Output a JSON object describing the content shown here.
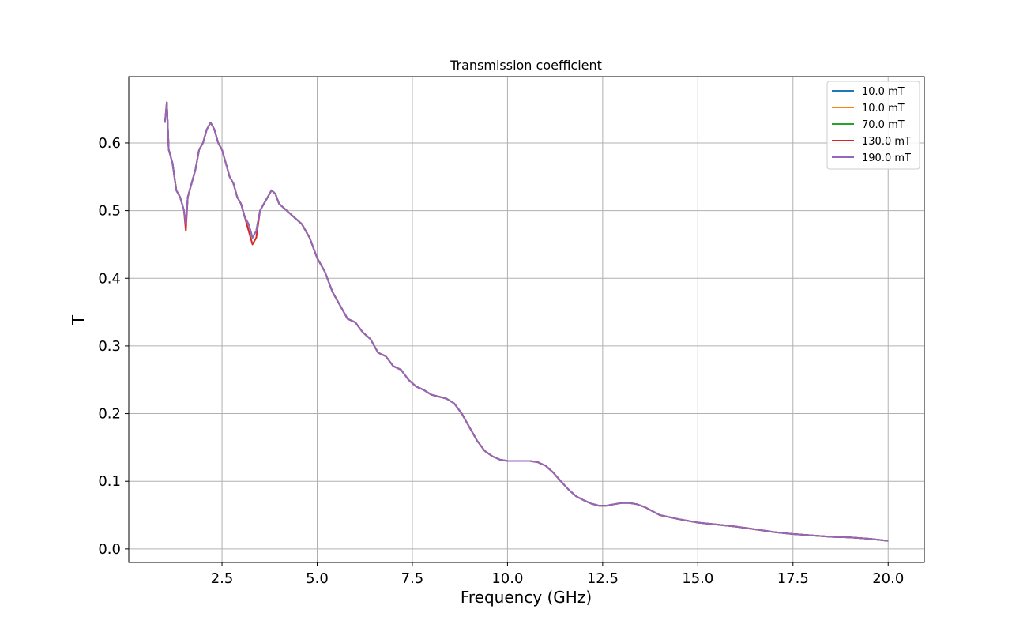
{
  "chart_data": {
    "type": "line",
    "title": "Transmission coefficient",
    "xlabel": "Frequency (GHz)",
    "ylabel": "T",
    "xlim": [
      0.05,
      20.95
    ],
    "ylim": [
      -0.02,
      0.698
    ],
    "xticks": [
      2.5,
      5.0,
      7.5,
      10.0,
      12.5,
      15.0,
      17.5,
      20.0
    ],
    "xtick_labels": [
      "2.5",
      "5.0",
      "7.5",
      "10.0",
      "12.5",
      "15.0",
      "17.5",
      "20.0"
    ],
    "yticks": [
      0.0,
      0.1,
      0.2,
      0.3,
      0.4,
      0.5,
      0.6
    ],
    "ytick_labels": [
      "0.0",
      "0.1",
      "0.2",
      "0.3",
      "0.4",
      "0.5",
      "0.6"
    ],
    "grid": true,
    "legend_position": "top-right",
    "x": [
      1.0,
      1.05,
      1.1,
      1.2,
      1.3,
      1.4,
      1.5,
      1.55,
      1.6,
      1.7,
      1.8,
      1.9,
      2.0,
      2.1,
      2.2,
      2.3,
      2.4,
      2.5,
      2.6,
      2.7,
      2.8,
      2.9,
      3.0,
      3.1,
      3.2,
      3.3,
      3.4,
      3.5,
      3.6,
      3.7,
      3.8,
      3.9,
      4.0,
      4.2,
      4.4,
      4.6,
      4.8,
      5.0,
      5.2,
      5.4,
      5.6,
      5.8,
      6.0,
      6.2,
      6.4,
      6.6,
      6.8,
      7.0,
      7.2,
      7.4,
      7.6,
      7.8,
      8.0,
      8.2,
      8.4,
      8.6,
      8.8,
      9.0,
      9.2,
      9.4,
      9.6,
      9.8,
      10.0,
      10.2,
      10.4,
      10.6,
      10.8,
      11.0,
      11.2,
      11.4,
      11.6,
      11.8,
      12.0,
      12.2,
      12.4,
      12.6,
      12.8,
      13.0,
      13.2,
      13.4,
      13.6,
      13.8,
      14.0,
      14.5,
      15.0,
      15.5,
      16.0,
      16.5,
      17.0,
      17.5,
      18.0,
      18.5,
      19.0,
      19.5,
      20.0
    ],
    "series": [
      {
        "name": "10.0 mT",
        "color": "#1f77b4",
        "values": [
          0.63,
          0.66,
          0.59,
          0.57,
          0.53,
          0.52,
          0.5,
          0.48,
          0.52,
          0.54,
          0.56,
          0.59,
          0.6,
          0.62,
          0.63,
          0.62,
          0.6,
          0.59,
          0.57,
          0.55,
          0.54,
          0.52,
          0.51,
          0.49,
          0.48,
          0.46,
          0.47,
          0.5,
          0.51,
          0.52,
          0.53,
          0.525,
          0.51,
          0.5,
          0.49,
          0.48,
          0.46,
          0.43,
          0.41,
          0.38,
          0.36,
          0.34,
          0.335,
          0.32,
          0.31,
          0.29,
          0.285,
          0.27,
          0.265,
          0.25,
          0.24,
          0.235,
          0.228,
          0.225,
          0.222,
          0.215,
          0.2,
          0.18,
          0.16,
          0.145,
          0.137,
          0.132,
          0.13,
          0.13,
          0.13,
          0.13,
          0.128,
          0.123,
          0.113,
          0.1,
          0.088,
          0.078,
          0.072,
          0.067,
          0.064,
          0.064,
          0.066,
          0.068,
          0.068,
          0.066,
          0.062,
          0.056,
          0.05,
          0.044,
          0.039,
          0.036,
          0.033,
          0.029,
          0.025,
          0.022,
          0.02,
          0.018,
          0.017,
          0.015,
          0.012
        ]
      },
      {
        "name": "10.0 mT",
        "color": "#ff7f0e",
        "values": [
          0.63,
          0.66,
          0.59,
          0.57,
          0.53,
          0.52,
          0.5,
          0.48,
          0.52,
          0.54,
          0.56,
          0.59,
          0.6,
          0.62,
          0.63,
          0.62,
          0.6,
          0.59,
          0.57,
          0.55,
          0.54,
          0.52,
          0.51,
          0.49,
          0.48,
          0.46,
          0.47,
          0.5,
          0.51,
          0.52,
          0.53,
          0.525,
          0.51,
          0.5,
          0.49,
          0.48,
          0.46,
          0.43,
          0.41,
          0.38,
          0.36,
          0.34,
          0.335,
          0.32,
          0.31,
          0.29,
          0.285,
          0.27,
          0.265,
          0.25,
          0.24,
          0.235,
          0.228,
          0.225,
          0.222,
          0.215,
          0.2,
          0.18,
          0.16,
          0.145,
          0.137,
          0.132,
          0.13,
          0.13,
          0.13,
          0.13,
          0.128,
          0.123,
          0.113,
          0.1,
          0.088,
          0.078,
          0.072,
          0.067,
          0.064,
          0.064,
          0.066,
          0.068,
          0.068,
          0.066,
          0.062,
          0.056,
          0.05,
          0.044,
          0.039,
          0.036,
          0.033,
          0.029,
          0.025,
          0.022,
          0.02,
          0.018,
          0.017,
          0.015,
          0.012
        ]
      },
      {
        "name": "70.0 mT",
        "color": "#2ca02c",
        "values": [
          0.63,
          0.66,
          0.59,
          0.57,
          0.53,
          0.52,
          0.5,
          0.48,
          0.52,
          0.54,
          0.56,
          0.59,
          0.6,
          0.62,
          0.63,
          0.62,
          0.6,
          0.59,
          0.57,
          0.55,
          0.54,
          0.52,
          0.51,
          0.49,
          0.48,
          0.46,
          0.47,
          0.5,
          0.51,
          0.52,
          0.53,
          0.525,
          0.51,
          0.5,
          0.49,
          0.48,
          0.46,
          0.43,
          0.41,
          0.38,
          0.36,
          0.34,
          0.335,
          0.32,
          0.31,
          0.29,
          0.285,
          0.27,
          0.265,
          0.25,
          0.24,
          0.235,
          0.228,
          0.225,
          0.222,
          0.215,
          0.2,
          0.18,
          0.16,
          0.145,
          0.137,
          0.132,
          0.13,
          0.13,
          0.13,
          0.13,
          0.128,
          0.123,
          0.113,
          0.1,
          0.088,
          0.078,
          0.072,
          0.067,
          0.064,
          0.064,
          0.066,
          0.068,
          0.068,
          0.066,
          0.062,
          0.056,
          0.05,
          0.044,
          0.039,
          0.036,
          0.033,
          0.029,
          0.025,
          0.022,
          0.02,
          0.018,
          0.017,
          0.015,
          0.012
        ]
      },
      {
        "name": "130.0 mT",
        "color": "#d62728",
        "values": [
          0.63,
          0.66,
          0.59,
          0.57,
          0.53,
          0.52,
          0.5,
          0.47,
          0.52,
          0.54,
          0.56,
          0.59,
          0.6,
          0.62,
          0.63,
          0.62,
          0.6,
          0.59,
          0.57,
          0.55,
          0.54,
          0.52,
          0.51,
          0.49,
          0.47,
          0.45,
          0.46,
          0.5,
          0.51,
          0.52,
          0.53,
          0.525,
          0.51,
          0.5,
          0.49,
          0.48,
          0.46,
          0.43,
          0.41,
          0.38,
          0.36,
          0.34,
          0.335,
          0.32,
          0.31,
          0.29,
          0.285,
          0.27,
          0.265,
          0.25,
          0.24,
          0.235,
          0.228,
          0.225,
          0.222,
          0.215,
          0.2,
          0.18,
          0.16,
          0.145,
          0.137,
          0.132,
          0.13,
          0.13,
          0.13,
          0.13,
          0.128,
          0.123,
          0.113,
          0.1,
          0.088,
          0.078,
          0.072,
          0.067,
          0.064,
          0.064,
          0.066,
          0.068,
          0.068,
          0.066,
          0.062,
          0.056,
          0.05,
          0.044,
          0.039,
          0.036,
          0.033,
          0.029,
          0.025,
          0.022,
          0.02,
          0.018,
          0.017,
          0.015,
          0.012
        ]
      },
      {
        "name": "190.0 mT",
        "color": "#9467bd",
        "values": [
          0.63,
          0.66,
          0.59,
          0.57,
          0.53,
          0.52,
          0.5,
          0.48,
          0.52,
          0.54,
          0.56,
          0.59,
          0.6,
          0.62,
          0.63,
          0.62,
          0.6,
          0.59,
          0.57,
          0.55,
          0.54,
          0.52,
          0.51,
          0.49,
          0.48,
          0.46,
          0.47,
          0.5,
          0.51,
          0.52,
          0.53,
          0.525,
          0.51,
          0.5,
          0.49,
          0.48,
          0.46,
          0.43,
          0.41,
          0.38,
          0.36,
          0.34,
          0.335,
          0.32,
          0.31,
          0.29,
          0.285,
          0.27,
          0.265,
          0.25,
          0.24,
          0.235,
          0.228,
          0.225,
          0.222,
          0.215,
          0.2,
          0.18,
          0.16,
          0.145,
          0.137,
          0.132,
          0.13,
          0.13,
          0.13,
          0.13,
          0.128,
          0.123,
          0.113,
          0.1,
          0.088,
          0.078,
          0.072,
          0.067,
          0.064,
          0.064,
          0.066,
          0.068,
          0.068,
          0.066,
          0.062,
          0.056,
          0.05,
          0.044,
          0.039,
          0.036,
          0.033,
          0.029,
          0.025,
          0.022,
          0.02,
          0.018,
          0.017,
          0.015,
          0.012
        ]
      }
    ]
  }
}
